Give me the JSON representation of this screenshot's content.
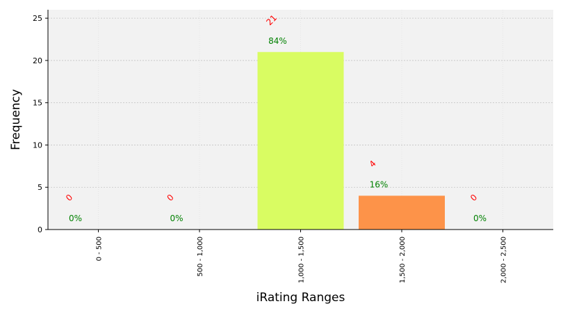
{
  "chart_data": {
    "type": "bar",
    "title": "",
    "xlabel": "iRating Ranges",
    "ylabel": "Frequency",
    "categories": [
      "0 - 500",
      "500 - 1,000",
      "1,000 - 1,500",
      "1,500 - 2,000",
      "2,000 - 2,500"
    ],
    "values": [
      0,
      0,
      21,
      4,
      0
    ],
    "percent_labels": [
      "0%",
      "0%",
      "84%",
      "16%",
      "0%"
    ],
    "count_labels": [
      "0",
      "0",
      "21",
      "4",
      "0"
    ],
    "bar_colors": [
      "#cccccc",
      "#cccccc",
      "#d9fc62",
      "#fd9349",
      "#cccccc"
    ],
    "count_label_color": "#ff0000",
    "percent_label_color": "#008000",
    "plot_background": "#f2f2f2",
    "grid": true,
    "ylim": [
      0,
      26
    ],
    "yticks": [
      0,
      5,
      10,
      15,
      20,
      25
    ],
    "legend": "none"
  }
}
